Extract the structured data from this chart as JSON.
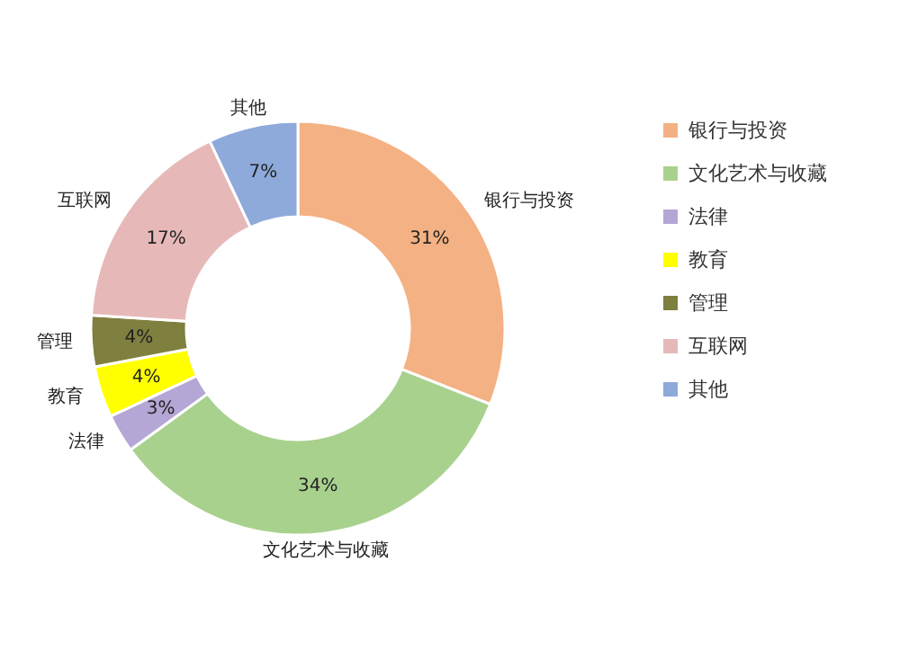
{
  "chart_data": {
    "type": "donut",
    "categories": [
      "银行与投资",
      "文化艺术与收藏",
      "法律",
      "教育",
      "管理",
      "互联网",
      "其他"
    ],
    "values": [
      31,
      34,
      3,
      4,
      4,
      17,
      7
    ],
    "colors": [
      "#f4b183",
      "#a9d18e",
      "#b4a7d6",
      "#ffff00",
      "#7f7f3f",
      "#e6b9b8",
      "#8eaadb"
    ],
    "value_labels": [
      "31%",
      "34%",
      "3%",
      "4%",
      "4%",
      "17%",
      "7%"
    ],
    "legend": "right"
  }
}
